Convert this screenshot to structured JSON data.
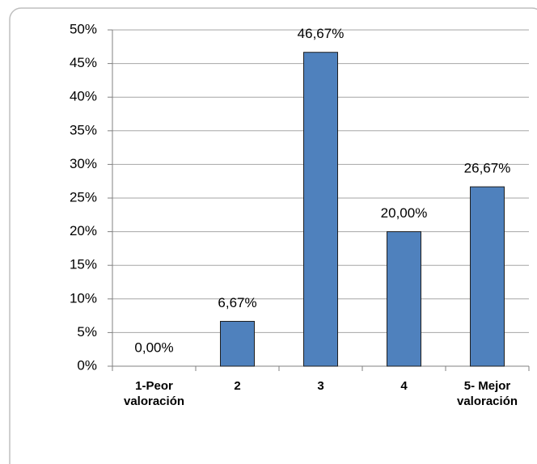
{
  "chart_data": {
    "type": "bar",
    "categories": [
      [
        "1-Peor",
        "valoración"
      ],
      [
        "2"
      ],
      [
        "3"
      ],
      [
        "4"
      ],
      [
        "5- Mejor",
        "valoración"
      ]
    ],
    "values": [
      0,
      6.67,
      46.67,
      20,
      26.67
    ],
    "value_labels": [
      "0,00%",
      "6,67%",
      "46,67%",
      "20,00%",
      "26,67%"
    ],
    "color": "#4f81bd",
    "ylim": [
      0,
      50
    ],
    "yticks": [
      {
        "value": 0,
        "label": "0%"
      },
      {
        "value": 5,
        "label": "5%"
      },
      {
        "value": 10,
        "label": "10%"
      },
      {
        "value": 15,
        "label": "15%"
      },
      {
        "value": 20,
        "label": "20%"
      },
      {
        "value": 25,
        "label": "25%"
      },
      {
        "value": 30,
        "label": "30%"
      },
      {
        "value": 35,
        "label": "35%"
      },
      {
        "value": 40,
        "label": "40%"
      },
      {
        "value": 45,
        "label": "45%"
      },
      {
        "value": 50,
        "label": "50%"
      }
    ],
    "grid": true
  }
}
